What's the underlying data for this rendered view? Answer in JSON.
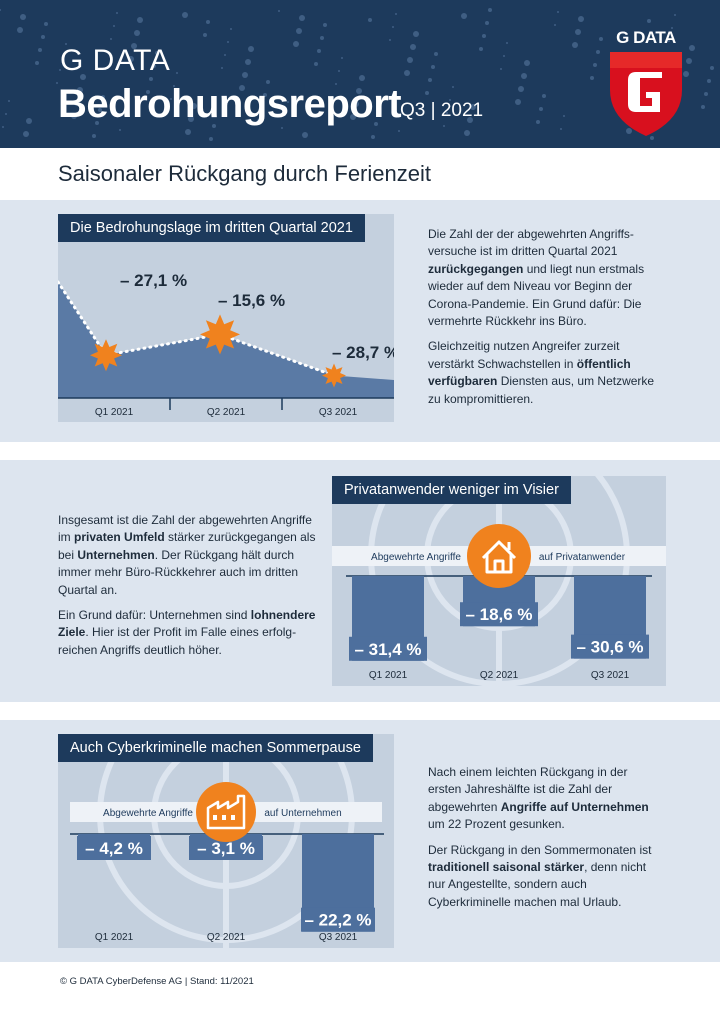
{
  "header": {
    "brand": "G DATA",
    "title": "Bedrohungsreport",
    "quarter": "Q3 | 2021",
    "logo_text": "G DATA"
  },
  "subtitle": "Saisonaler Rückgang durch Ferienzeit",
  "section1": {
    "chart_title": "Die Bedrohungslage im dritten Quartal 2021",
    "text": {
      "p1_a": "Die Zahl der der abgewehrten Angriffs-versuche ist im dritten Quartal 2021",
      "p1_b": "zurückgegangen",
      "p1_c": "und liegt nun erstmals wieder auf dem Niveau vor Beginn der Corona-Pandemie. Ein Grund dafür: Die vermehrte Rückkehr ins Büro.",
      "p2_a": "Gleichzeitig nutzen Angreifer zurzeit verstärkt Schwachstellen in",
      "p2_b": "öffentlich verfügbaren",
      "p2_c": "Diensten aus, um Netzwerke zu kompromittieren."
    }
  },
  "section2": {
    "chart_title": "Privatanwender weniger im Visier",
    "legend_left": "Abgewehrte Angriffe",
    "legend_right": "auf Privatanwender",
    "text": {
      "p1_a": "Insgesamt ist die Zahl der abgewehrten Angriffe im",
      "p1_b": "privaten Umfeld",
      "p1_c": "stärker zurückgegangen als bei",
      "p1_d": "Unternehmen",
      "p1_e": ". Der Rückgang hält durch immer mehr Büro-Rückkehrer auch im dritten Quartal an.",
      "p2_a": "Ein Grund dafür: Unternehmen sind",
      "p2_b": "lohnendere Ziele",
      "p2_c": ". Hier ist der Profit im Falle eines erfolg-reichen Angriffs deutlich höher."
    }
  },
  "section3": {
    "chart_title": "Auch Cyberkriminelle machen Sommerpause",
    "legend_left": "Abgewehrte Angriffe",
    "legend_right": "auf Unternehmen",
    "text": {
      "p1_a": "Nach einem leichten Rückgang in der ersten Jahreshälfte ist die Zahl der abgewehrten",
      "p1_b": "Angriffe auf Unternehmen",
      "p1_c": "um 22 Prozent gesunken.",
      "p2_a": "Der Rückgang in den Sommermonaten ist",
      "p2_b": "traditionell saisonal stärker",
      "p2_c": ", denn nicht nur Angestellte, sondern auch Cyberkriminelle machen mal Urlaub."
    }
  },
  "footer": "© G DATA CyberDefense AG  |  Stand: 11/2021",
  "colors": {
    "navy": "#1d3a5c",
    "panel": "#dde5ef",
    "area": "#5a7aa5",
    "bar": "#4d6f9d",
    "orange": "#f0821e",
    "logo_red": "#d8101e"
  },
  "chart_data": [
    {
      "type": "area",
      "title": "Die Bedrohungslage im dritten Quartal 2021",
      "categories": [
        "Q1 2021",
        "Q2 2021",
        "Q3 2021"
      ],
      "values": [
        -27.1,
        -15.6,
        -28.7
      ],
      "labels": [
        "– 27,1 %",
        "– 15,6 %",
        "– 28,7 %"
      ]
    },
    {
      "type": "bar",
      "title": "Privatanwender weniger im Visier",
      "categories": [
        "Q1 2021",
        "Q2 2021",
        "Q3 2021"
      ],
      "values": [
        -31.4,
        -18.6,
        -30.6
      ],
      "labels": [
        "– 31,4 %",
        "– 18,6 %",
        "– 30,6 %"
      ]
    },
    {
      "type": "bar",
      "title": "Auch Cyberkriminelle machen Sommerpause",
      "categories": [
        "Q1 2021",
        "Q2 2021",
        "Q3 2021"
      ],
      "values": [
        -4.2,
        -3.1,
        -22.2
      ],
      "labels": [
        "– 4,2 %",
        "– 3,1 %",
        "– 22,2 %"
      ]
    }
  ]
}
